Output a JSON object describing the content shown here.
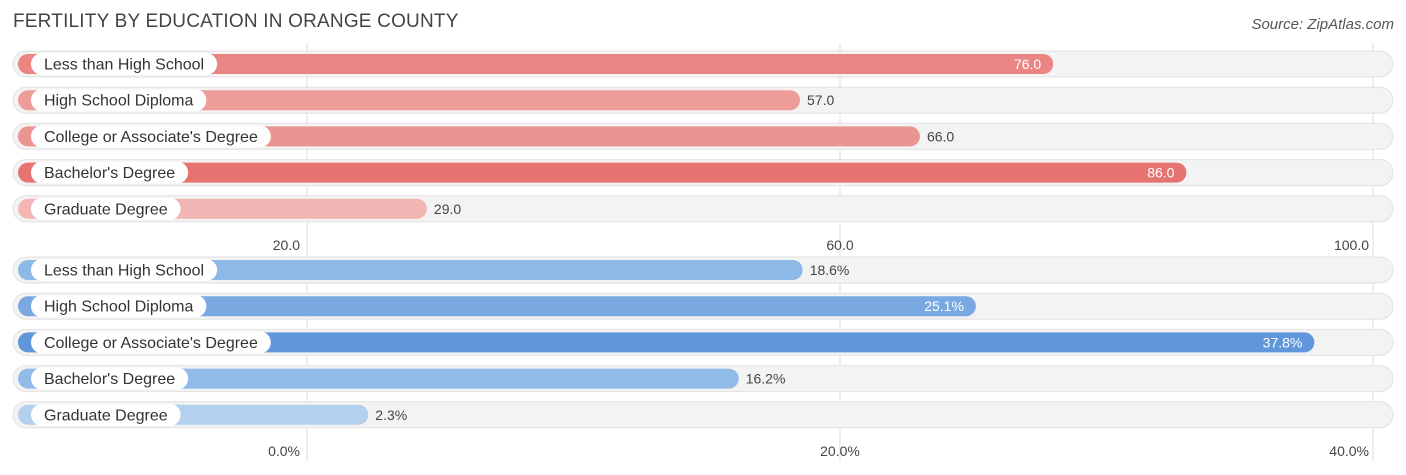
{
  "title": "FERTILITY BY EDUCATION IN ORANGE COUNTY",
  "source": "Source: ZipAtlas.com",
  "chart_data": [
    {
      "type": "bar",
      "orientation": "horizontal",
      "categories": [
        "Less than High School",
        "High School Diploma",
        "College or Associate's Degree",
        "Bachelor's Degree",
        "Graduate Degree"
      ],
      "values": [
        76.0,
        57.0,
        66.0,
        86.0,
        29.0
      ],
      "value_labels": [
        "76.0",
        "57.0",
        "66.0",
        "86.0",
        "29.0"
      ],
      "bar_colors": [
        "#ea8583",
        "#ee9c99",
        "#eb9593",
        "#e67370",
        "#f2b6b4"
      ],
      "xlim": [
        20.0,
        100.0
      ],
      "ticks": [
        20.0,
        60.0,
        100.0
      ],
      "tick_labels": [
        "20.0",
        "60.0",
        "100.0"
      ],
      "grid": true
    },
    {
      "type": "bar",
      "orientation": "horizontal",
      "categories": [
        "Less than High School",
        "High School Diploma",
        "College or Associate's Degree",
        "Bachelor's Degree",
        "Graduate Degree"
      ],
      "values": [
        18.6,
        25.1,
        37.8,
        16.2,
        2.3
      ],
      "value_labels": [
        "18.6%",
        "25.1%",
        "37.8%",
        "16.2%",
        "2.3%"
      ],
      "bar_colors": [
        "#8db9e6",
        "#79a9e0",
        "#5f97da",
        "#90bbe7",
        "#b3d0ee"
      ],
      "xlim": [
        0.0,
        40.0
      ],
      "ticks": [
        0.0,
        20.0,
        40.0
      ],
      "tick_labels": [
        "0.0%",
        "20.0%",
        "40.0%"
      ],
      "grid": true
    }
  ]
}
